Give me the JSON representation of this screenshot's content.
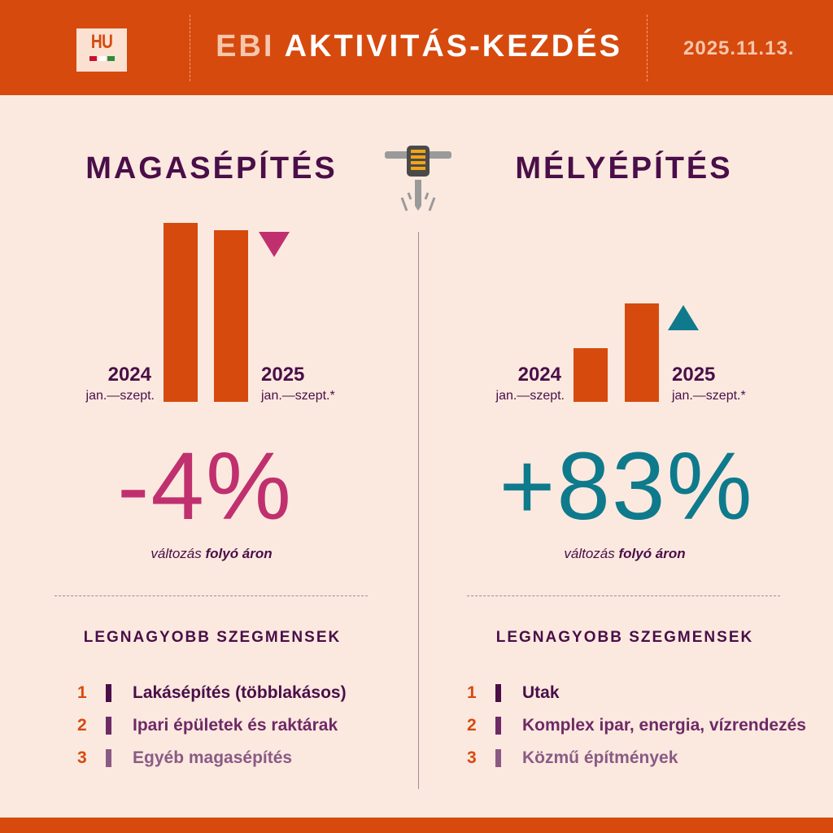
{
  "header": {
    "logo_text": "HU",
    "title_prefix": "EBI",
    "title_main": "AKTIVITÁS-KEZDÉS",
    "date": "2025.11.13."
  },
  "chart_data": [
    {
      "type": "bar",
      "title": "MAGASÉPÍTÉS",
      "categories": [
        "2024 jan.—szept.",
        "2025 jan.—szept.*"
      ],
      "years": [
        "2024",
        "2025"
      ],
      "periods": [
        "jan.—szept.",
        "jan.—szept.*"
      ],
      "values": [
        100,
        96
      ],
      "unit": "index (2024=100)",
      "change": "-4%",
      "direction": "down",
      "note_prefix": "változás",
      "note_bold": "folyó áron",
      "color": "#C0306E"
    },
    {
      "type": "bar",
      "title": "MÉLYÉPÍTÉS",
      "categories": [
        "2024 jan.—szept.",
        "2025 jan.—szept.*"
      ],
      "years": [
        "2024",
        "2025"
      ],
      "periods": [
        "jan.—szept.",
        "jan.—szept.*"
      ],
      "values": [
        100,
        183
      ],
      "unit": "index (2024=100)",
      "change": "+83%",
      "direction": "up",
      "note_prefix": "változás",
      "note_bold": "folyó áron",
      "color": "#0E7A8C"
    }
  ],
  "segments": [
    {
      "title": "LEGNAGYOBB SZEGMENSEK",
      "items": [
        {
          "rank": "1",
          "label": "Lakásépítés (többlakásos)"
        },
        {
          "rank": "2",
          "label": "Ipari épületek és raktárak"
        },
        {
          "rank": "3",
          "label": "Egyéb magasépítés"
        }
      ]
    },
    {
      "title": "LEGNAGYOBB SZEGMENSEK",
      "items": [
        {
          "rank": "1",
          "label": "Utak"
        },
        {
          "rank": "2",
          "label": "Komplex ipar, energia, vízrendezés"
        },
        {
          "rank": "3",
          "label": "Közmű építmények"
        }
      ]
    }
  ],
  "colors": {
    "brand": "#D64A0E",
    "text": "#4A0E48",
    "down": "#C0306E",
    "up": "#0E7A8C",
    "rank_shades": [
      "#4A0E48",
      "#6E2A66",
      "#8A5A85"
    ]
  },
  "icons": {
    "center": "jackhammer-icon"
  }
}
